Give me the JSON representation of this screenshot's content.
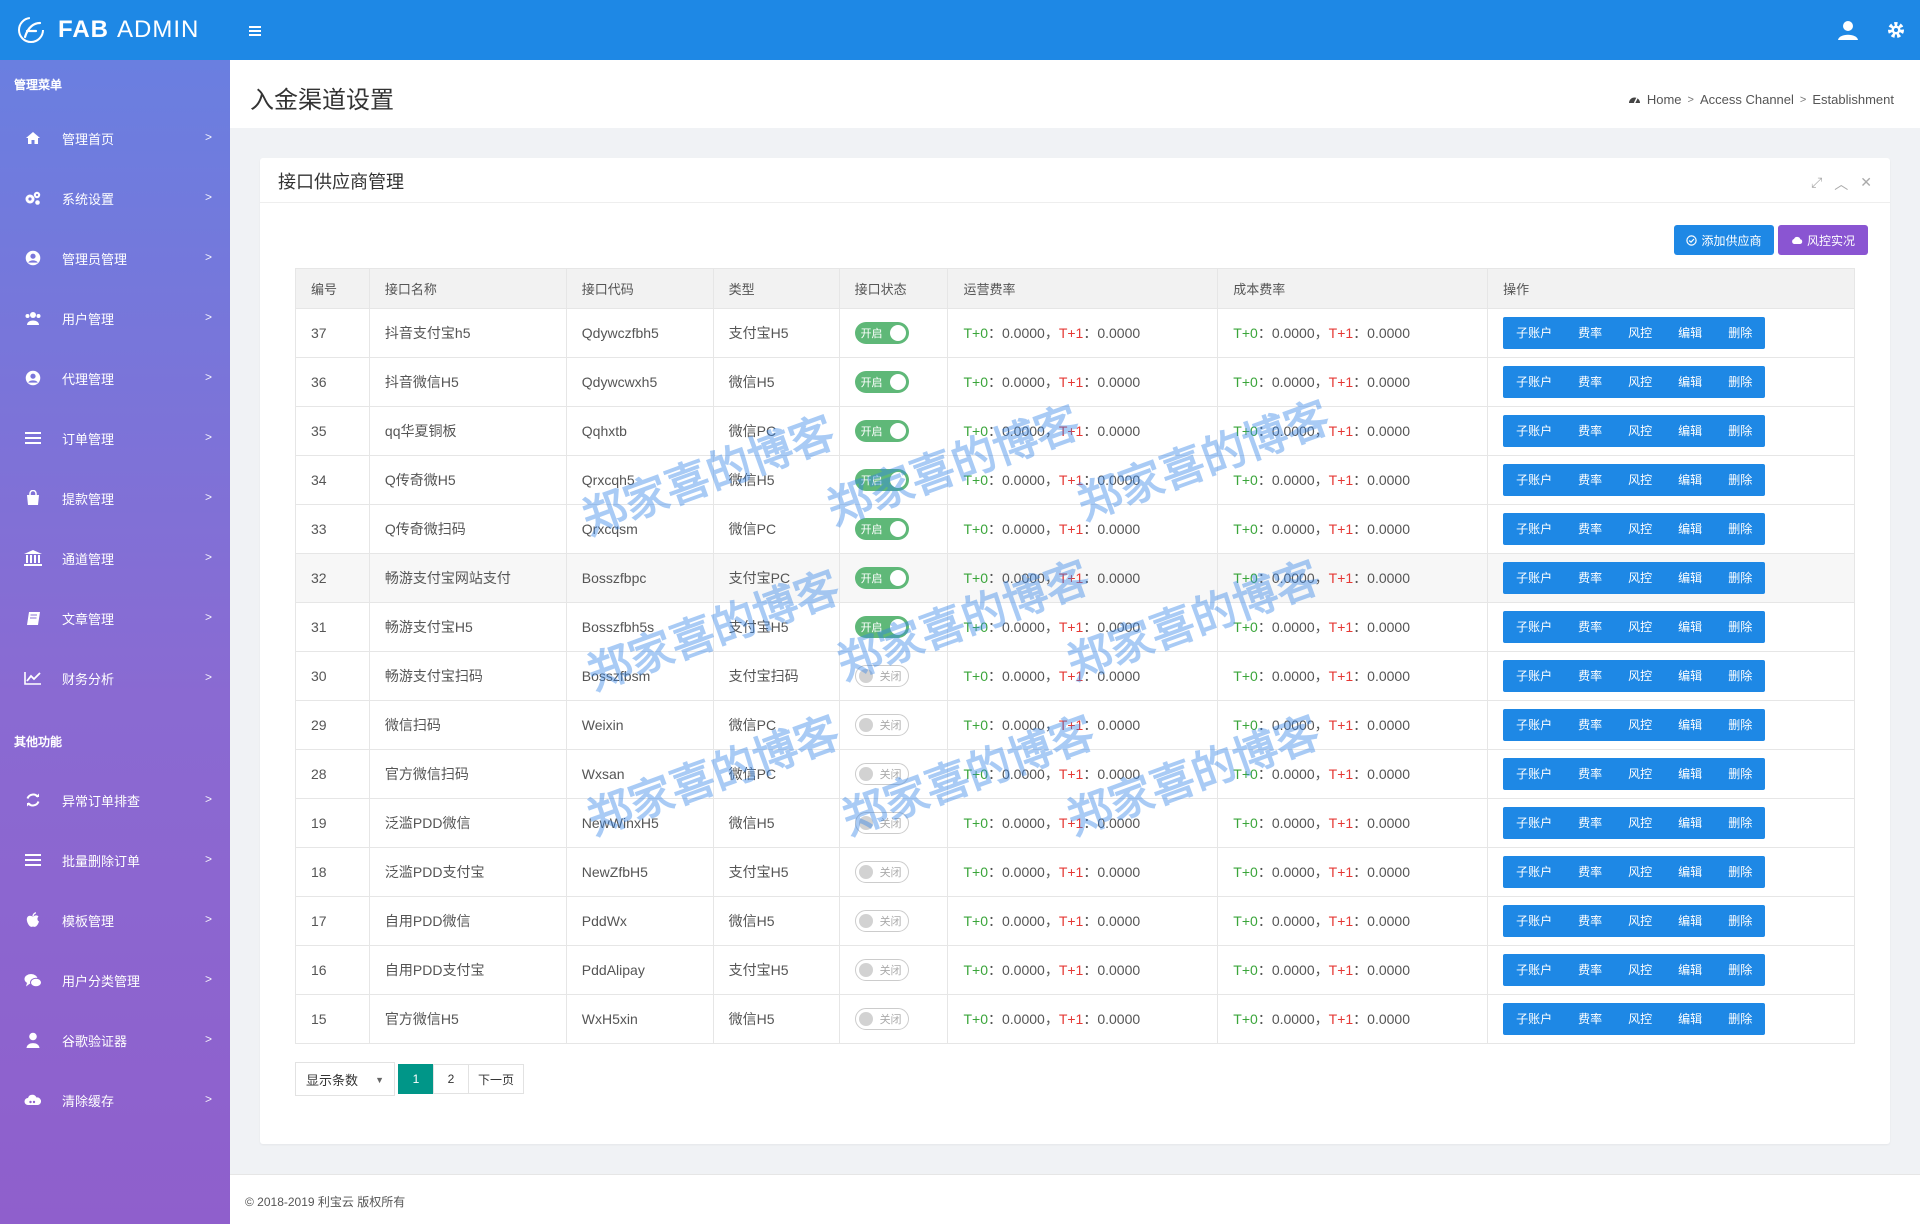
{
  "brand": {
    "name_bold": "FAB",
    "name_light": "ADMIN"
  },
  "sidebar": {
    "section1": "管理菜单",
    "items1": [
      {
        "label": "管理首页",
        "icon": "home-icon"
      },
      {
        "label": "系统设置",
        "icon": "gears-icon"
      },
      {
        "label": "管理员管理",
        "icon": "user-circle-icon"
      },
      {
        "label": "用户管理",
        "icon": "users-icon"
      },
      {
        "label": "代理管理",
        "icon": "user-circle-icon"
      },
      {
        "label": "订单管理",
        "icon": "list-icon"
      },
      {
        "label": "提款管理",
        "icon": "shopping-bag-icon"
      },
      {
        "label": "通道管理",
        "icon": "bank-icon"
      },
      {
        "label": "文章管理",
        "icon": "book-icon"
      },
      {
        "label": "财务分析",
        "icon": "line-chart-icon"
      }
    ],
    "section2": "其他功能",
    "items2": [
      {
        "label": "异常订单排查",
        "icon": "refresh-icon"
      },
      {
        "label": "批量删除订单",
        "icon": "list-icon"
      },
      {
        "label": "模板管理",
        "icon": "apple-icon"
      },
      {
        "label": "用户分类管理",
        "icon": "chat-icon"
      },
      {
        "label": "谷歌验证器",
        "icon": "user-icon"
      },
      {
        "label": "清除缓存",
        "icon": "cloud-icon"
      }
    ]
  },
  "page": {
    "title": "入金渠道设置",
    "breadcrumb": [
      "Home",
      "Access Channel",
      "Establishment"
    ]
  },
  "card": {
    "title": "接口供应商管理",
    "add_button": "添加供应商",
    "risk_button": "风控实况"
  },
  "table": {
    "headers": [
      "编号",
      "接口名称",
      "接口代码",
      "类型",
      "接口状态",
      "运营费率",
      "成本费率",
      "操作"
    ],
    "ops": [
      "子账户",
      "费率",
      "风控",
      "编辑",
      "删除"
    ],
    "rate_t0": "T+0",
    "rate_t1": "T+1",
    "rate_value": "0.0000",
    "rows": [
      {
        "id": "37",
        "name": "抖音支付宝h5",
        "code": "Qdywczfbh5",
        "type": "支付宝H5",
        "status": "开启",
        "on": true
      },
      {
        "id": "36",
        "name": "抖音微信H5",
        "code": "Qdywcwxh5",
        "type": "微信H5",
        "status": "开启",
        "on": true
      },
      {
        "id": "35",
        "name": "qq华夏铜板",
        "code": "Qqhxtb",
        "type": "微信PC",
        "status": "开启",
        "on": true
      },
      {
        "id": "34",
        "name": "Q传奇微H5",
        "code": "Qrxcqh5",
        "type": "微信H5",
        "status": "开启",
        "on": true
      },
      {
        "id": "33",
        "name": "Q传奇微扫码",
        "code": "Qrxcqsm",
        "type": "微信PC",
        "status": "开启",
        "on": true
      },
      {
        "id": "32",
        "name": "畅游支付宝网站支付",
        "code": "Bosszfbpc",
        "type": "支付宝PC",
        "status": "开启",
        "on": true
      },
      {
        "id": "31",
        "name": "畅游支付宝H5",
        "code": "Bosszfbh5s",
        "type": "支付宝H5",
        "status": "开启",
        "on": true
      },
      {
        "id": "30",
        "name": "畅游支付宝扫码",
        "code": "Bosszfbsm",
        "type": "支付宝扫码",
        "status": "关闭",
        "on": false
      },
      {
        "id": "29",
        "name": "微信扫码",
        "code": "Weixin",
        "type": "微信PC",
        "status": "关闭",
        "on": false
      },
      {
        "id": "28",
        "name": "官方微信扫码",
        "code": "Wxsan",
        "type": "微信PC",
        "status": "关闭",
        "on": false
      },
      {
        "id": "19",
        "name": "泛滥PDD微信",
        "code": "NewWinxH5",
        "type": "微信H5",
        "status": "关闭",
        "on": false
      },
      {
        "id": "18",
        "name": "泛滥PDD支付宝",
        "code": "NewZfbH5",
        "type": "支付宝H5",
        "status": "关闭",
        "on": false
      },
      {
        "id": "17",
        "name": "自用PDD微信",
        "code": "PddWx",
        "type": "微信H5",
        "status": "关闭",
        "on": false
      },
      {
        "id": "16",
        "name": "自用PDD支付宝",
        "code": "PddAlipay",
        "type": "支付宝H5",
        "status": "关闭",
        "on": false
      },
      {
        "id": "15",
        "name": "官方微信H5",
        "code": "WxH5xin",
        "type": "微信H5",
        "status": "关闭",
        "on": false
      }
    ]
  },
  "pager": {
    "size_label": "显示条数",
    "pages": [
      "1",
      "2"
    ],
    "next": "下一页"
  },
  "footer": "© 2018-2019 利宝云 版权所有",
  "watermark": "郑家喜的博客",
  "colors": {
    "primary": "#1e88e5",
    "risk": "#8a55d2",
    "switch_on": "#5fb878",
    "pager_active": "#009688"
  }
}
